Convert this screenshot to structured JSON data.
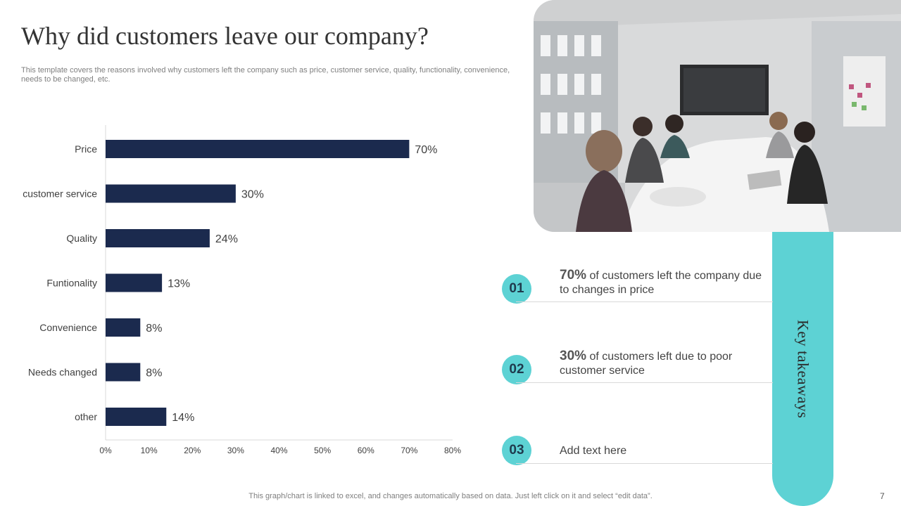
{
  "slide": {
    "title": "Why did customers leave our company?",
    "subtitle": "This template covers the reasons involved why customers left the company such as price, customer service, quality, functionality, convenience, needs to be changed, etc.",
    "footer": "This graph/chart is linked to excel,  and changes automatically based on data. Just left click on it and select “edit data”.",
    "page_number": "7"
  },
  "chart_data": {
    "type": "bar",
    "orientation": "horizontal",
    "categories": [
      "Price",
      "customer service",
      "Quality",
      "Funtionality",
      "Convenience",
      "Needs changed",
      "other"
    ],
    "values": [
      70,
      30,
      24,
      13,
      8,
      8,
      14
    ],
    "value_labels": [
      "70%",
      "30%",
      "24%",
      "13%",
      "8%",
      "8%",
      "14%"
    ],
    "xlim": [
      0,
      80
    ],
    "x_ticks": [
      0,
      10,
      20,
      30,
      40,
      50,
      60,
      70,
      80
    ],
    "x_tick_labels": [
      "0%",
      "10%",
      "20%",
      "30%",
      "40%",
      "50%",
      "60%",
      "70%",
      "80%"
    ],
    "bar_color": "#1b2a4e",
    "grid": false
  },
  "key_takeaways": {
    "heading": "Key takeaways",
    "accent_color": "#5dd2d4",
    "items": [
      {
        "number": "01",
        "highlight": "70%",
        "text": " of customers left the company due to changes in price"
      },
      {
        "number": "02",
        "highlight": "30%",
        "text": " of customers left due to poor customer service"
      },
      {
        "number": "03",
        "highlight": "",
        "text": "Add text here"
      }
    ]
  },
  "photo": {
    "icon": "meeting-room-photo"
  }
}
